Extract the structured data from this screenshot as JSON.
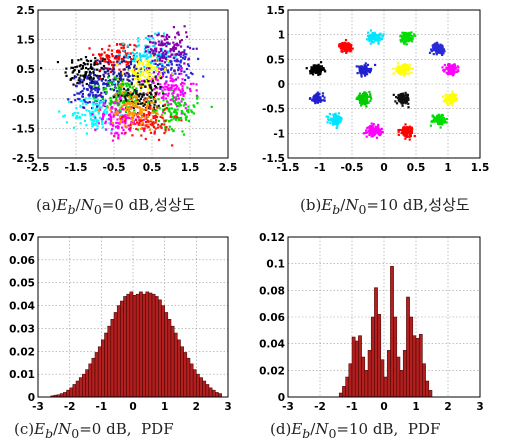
{
  "chart_data": [
    {
      "id": "a",
      "type": "scatter",
      "caption": {
        "prefix": "(a)",
        "ebn0": "0",
        "unit": "dB",
        "label": ",성상도"
      },
      "xlim": [
        -2.5,
        2.5
      ],
      "ylim": [
        -2.5,
        2.5
      ],
      "xticks": [
        "-2.5",
        "-1.5",
        "-0.5",
        "0.5",
        "1.5",
        "2.5"
      ],
      "yticks": [
        "2.5",
        "1.5",
        "0.5",
        "-0.5",
        "-1.5",
        "-2.5"
      ],
      "grid": true,
      "cluster_spread": 0.55,
      "points_per_cluster": 110,
      "clusters": [
        {
          "x": -1.2,
          "y": 0.4,
          "color": "#000000"
        },
        {
          "x": -0.4,
          "y": 0.9,
          "color": "#ff0000"
        },
        {
          "x": 0.4,
          "y": 1.0,
          "color": "#00e5ff"
        },
        {
          "x": 1.0,
          "y": 0.6,
          "color": "#2a2ad8"
        },
        {
          "x": -1.0,
          "y": -0.3,
          "color": "#2020d0"
        },
        {
          "x": -0.3,
          "y": 0.3,
          "color": "#1a1a9a"
        },
        {
          "x": 0.3,
          "y": 0.3,
          "color": "#ffff00"
        },
        {
          "x": 1.0,
          "y": -0.2,
          "color": "#ff00ff"
        },
        {
          "x": -1.0,
          "y": -1.0,
          "color": "#00ffff"
        },
        {
          "x": -0.3,
          "y": -0.4,
          "color": "#00cc00"
        },
        {
          "x": 0.3,
          "y": -0.4,
          "color": "#111111"
        },
        {
          "x": 1.1,
          "y": -0.9,
          "color": "#00dd00"
        },
        {
          "x": -0.4,
          "y": -1.2,
          "color": "#ff00ff"
        },
        {
          "x": 0.4,
          "y": -1.2,
          "color": "#ff1010"
        },
        {
          "x": 0.9,
          "y": 1.2,
          "color": "#8800aa"
        },
        {
          "x": 0.0,
          "y": -0.8,
          "color": "#ff9900"
        }
      ]
    },
    {
      "id": "b",
      "type": "scatter",
      "caption": {
        "prefix": "(b)",
        "ebn0": "10",
        "unit": "dB",
        "label": ",성상도"
      },
      "xlim": [
        -1.5,
        1.5
      ],
      "ylim": [
        -1.5,
        1.5
      ],
      "xticks": [
        "-1.5",
        "-1",
        "-0.5",
        "0",
        "0.5",
        "1",
        "1.5"
      ],
      "yticks": [
        "1.5",
        "1",
        "0.5",
        "0",
        "-0.5",
        "-1",
        "-1.5"
      ],
      "grid": true,
      "cluster_spread": 0.09,
      "points_per_cluster": 110,
      "clusters": [
        {
          "x": -0.6,
          "y": 0.75,
          "color": "#ff0000"
        },
        {
          "x": -0.15,
          "y": 0.95,
          "color": "#00e5ff"
        },
        {
          "x": 0.35,
          "y": 0.95,
          "color": "#00dd00"
        },
        {
          "x": 0.85,
          "y": 0.72,
          "color": "#2a2ad8"
        },
        {
          "x": -1.05,
          "y": 0.3,
          "color": "#000000"
        },
        {
          "x": -0.32,
          "y": 0.28,
          "color": "#2020d0"
        },
        {
          "x": 0.3,
          "y": 0.3,
          "color": "#ffff00"
        },
        {
          "x": 1.05,
          "y": 0.3,
          "color": "#ff00ff"
        },
        {
          "x": -1.05,
          "y": -0.3,
          "color": "#2020d0"
        },
        {
          "x": -0.32,
          "y": -0.3,
          "color": "#00cc00"
        },
        {
          "x": 0.3,
          "y": -0.3,
          "color": "#111111"
        },
        {
          "x": 1.05,
          "y": -0.3,
          "color": "#ffff00"
        },
        {
          "x": -0.75,
          "y": -0.72,
          "color": "#00e5ff"
        },
        {
          "x": -0.15,
          "y": -0.95,
          "color": "#ff00ff"
        },
        {
          "x": 0.35,
          "y": -0.95,
          "color": "#ff0000"
        },
        {
          "x": 0.85,
          "y": -0.72,
          "color": "#00dd00"
        }
      ]
    },
    {
      "id": "c",
      "type": "bar",
      "caption": {
        "prefix": "(c)",
        "ebn0": "0",
        "unit": "dB,",
        "label": "PDF"
      },
      "xlim": [
        -3,
        3
      ],
      "ylim": [
        0,
        0.07
      ],
      "xticks": [
        "-3",
        "-2",
        "-1",
        "0",
        "1",
        "2",
        "3"
      ],
      "yticks": [
        "0.07",
        "0.06",
        "0.05",
        "0.04",
        "0.03",
        "0.02",
        "0.01",
        "0"
      ],
      "grid": true,
      "bar_color": "#b21f1f",
      "bins": {
        "start": -2.6,
        "width": 0.1
      },
      "values": [
        0.0005,
        0.0008,
        0.001,
        0.0015,
        0.002,
        0.003,
        0.004,
        0.0055,
        0.007,
        0.0085,
        0.01,
        0.012,
        0.0145,
        0.017,
        0.0195,
        0.022,
        0.025,
        0.028,
        0.031,
        0.034,
        0.037,
        0.04,
        0.042,
        0.044,
        0.045,
        0.046,
        0.0445,
        0.045,
        0.046,
        0.045,
        0.046,
        0.0455,
        0.045,
        0.044,
        0.0425,
        0.04,
        0.037,
        0.034,
        0.031,
        0.028,
        0.025,
        0.022,
        0.0195,
        0.017,
        0.0145,
        0.012,
        0.01,
        0.0085,
        0.007,
        0.0055,
        0.004,
        0.003,
        0.002,
        0.0015
      ]
    },
    {
      "id": "d",
      "type": "bar",
      "caption": {
        "prefix": "(d)",
        "ebn0": "10",
        "unit": "dB,",
        "label": "PDF"
      },
      "xlim": [
        -3,
        3
      ],
      "ylim": [
        0,
        0.12
      ],
      "xticks": [
        "-3",
        "-2",
        "-1",
        "0",
        "1",
        "2",
        "3"
      ],
      "yticks": [
        "0.12",
        "0.1",
        "0.08",
        "0.06",
        "0.04",
        "0.02",
        "0"
      ],
      "grid": true,
      "bar_color": "#b21f1f",
      "bins": {
        "start": -1.4,
        "width": 0.1
      },
      "values": [
        0.003,
        0.008,
        0.015,
        0.025,
        0.045,
        0.042,
        0.046,
        0.03,
        0.02,
        0.035,
        0.06,
        0.082,
        0.062,
        0.028,
        0.015,
        0.035,
        0.098,
        0.06,
        0.03,
        0.02,
        0.035,
        0.075,
        0.06,
        0.046,
        0.044,
        0.047,
        0.025,
        0.012,
        0.005
      ]
    }
  ]
}
